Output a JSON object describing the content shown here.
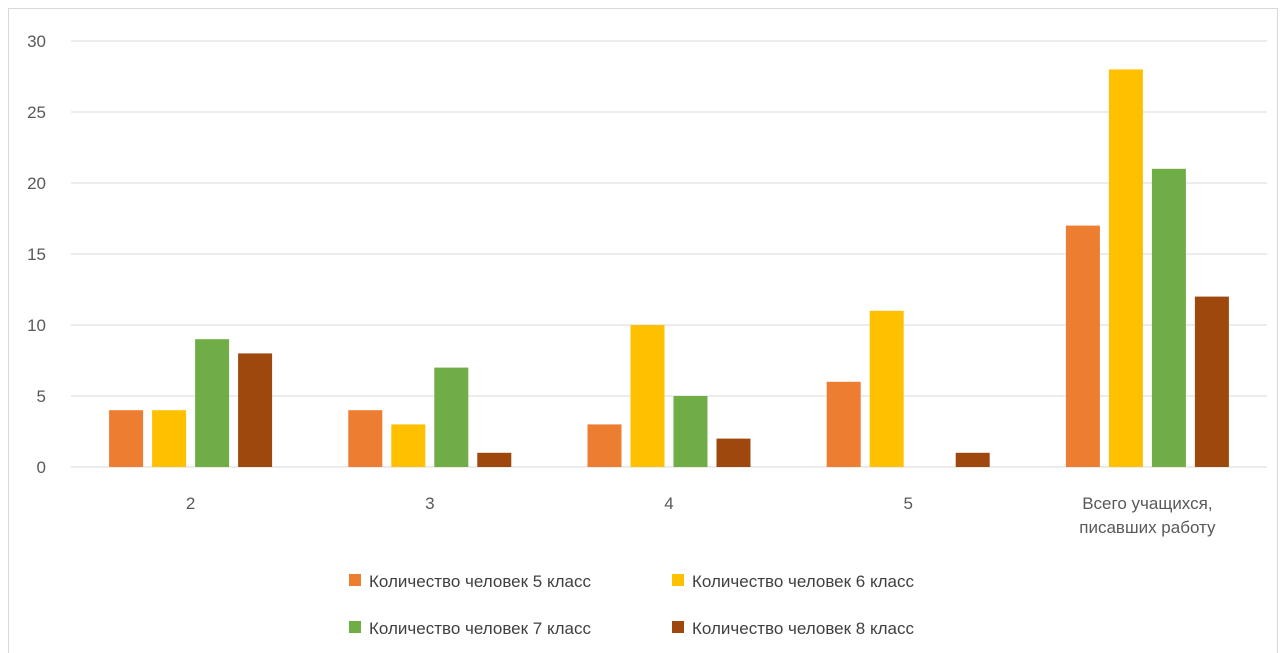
{
  "chart_data": {
    "type": "bar",
    "categories": [
      "2",
      "3",
      "4",
      "5",
      "Всего  учащихся, писавших работу"
    ],
    "category_label_lines": [
      [
        "2"
      ],
      [
        "3"
      ],
      [
        "4"
      ],
      [
        "5"
      ],
      [
        "Всего  учащихся,",
        "писавших работу"
      ]
    ],
    "series": [
      {
        "name": "Количество человек 5 класс",
        "color": "#ED7D31",
        "values": [
          4,
          4,
          3,
          6,
          17
        ]
      },
      {
        "name": "Количество человек 6 класс",
        "color": "#FFC000",
        "values": [
          4,
          3,
          10,
          11,
          28
        ]
      },
      {
        "name": "Количество человек 7 класс",
        "color": "#70AD47",
        "values": [
          9,
          7,
          5,
          0,
          21
        ]
      },
      {
        "name": "Количество человек 8 класс",
        "color": "#9E480E",
        "values": [
          8,
          1,
          2,
          1,
          12
        ]
      }
    ],
    "ylim": [
      0,
      30
    ],
    "yticks": [
      0,
      5,
      10,
      15,
      20,
      25,
      30
    ],
    "grid": true,
    "legend_position": "bottom",
    "gridline_color": "#d9d9d9"
  }
}
